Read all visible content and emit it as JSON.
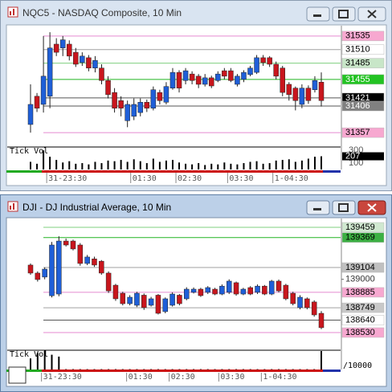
{
  "chart_data": [
    {
      "type": "candlestick",
      "title": "NQC5 - NASDAQ Composite, 10 Min",
      "volume_label": "Tick Vol",
      "categories": [
        null,
        null,
        null,
        "31-23:30",
        null,
        null,
        null,
        null,
        null,
        null,
        null,
        null,
        null,
        null,
        null,
        null,
        "01:30",
        null,
        null,
        null,
        null,
        null,
        null,
        "02:30",
        null,
        null,
        null,
        null,
        null,
        null,
        null,
        "03:30",
        null,
        null,
        null,
        null,
        null,
        null,
        "1-04:30",
        null,
        null,
        null,
        null,
        null,
        null,
        null
      ],
      "open": [
        31372,
        31424,
        31409,
        31424,
        31520,
        31513,
        31520,
        31505,
        31486,
        31495,
        31476,
        31476,
        31453,
        31431,
        31416,
        31379,
        31387,
        31394,
        31413,
        31402,
        31431,
        31413,
        31439,
        31468,
        31453,
        31465,
        31461,
        31446,
        31458,
        31453,
        31471,
        31471,
        31446,
        31455,
        31464,
        31468,
        31495,
        31495,
        31483,
        31476,
        31446,
        31439,
        31409,
        31439,
        31436,
        31450
      ],
      "high": [
        31446,
        31430,
        31535,
        31542,
        31531,
        31535,
        31527,
        31513,
        31505,
        31500,
        31498,
        31483,
        31461,
        31439,
        31424,
        31416,
        31420,
        31420,
        31418,
        31442,
        31436,
        31450,
        31476,
        31472,
        31476,
        31470,
        31465,
        31465,
        31462,
        31470,
        31476,
        31476,
        31465,
        31472,
        31480,
        31500,
        31500,
        31498,
        31488,
        31480,
        31450,
        31442,
        31446,
        31444,
        31461,
        31468
      ],
      "low": [
        31357,
        31395,
        31394,
        31402,
        31498,
        31498,
        31490,
        31478,
        31480,
        31470,
        31468,
        31446,
        31420,
        31394,
        31387,
        31367,
        31380,
        31387,
        31395,
        31398,
        31409,
        31409,
        31436,
        31431,
        31446,
        31446,
        31439,
        31442,
        31439,
        31450,
        31455,
        31450,
        31442,
        31450,
        31461,
        31465,
        31480,
        31478,
        31455,
        31424,
        31416,
        31398,
        31402,
        31410,
        31431,
        31405
      ],
      "close": [
        31409,
        31402,
        31461,
        31513,
        31505,
        31528,
        31498,
        31483,
        31498,
        31476,
        31490,
        31453,
        31427,
        31402,
        31402,
        31409,
        31409,
        31413,
        31402,
        31436,
        31416,
        31442,
        31468,
        31439,
        31471,
        31453,
        31446,
        31458,
        31443,
        31465,
        31461,
        31453,
        31461,
        31468,
        31476,
        31495,
        31486,
        31483,
        31461,
        31431,
        31427,
        31416,
        31439,
        31416,
        31453,
        31416
      ],
      "up_color": "#1f5fd8",
      "down_color": "#c8161d",
      "ylim": [
        31332,
        31554
      ],
      "levels": [
        {
          "value": 31535,
          "bg": "#f7a8d0",
          "fg": "#000000",
          "line": "#e58ad0"
        },
        {
          "value": 31510,
          "bg": "#ffffff",
          "fg": "#000000",
          "line": "#a0a0a0"
        },
        {
          "value": 31485,
          "bg": "#c8e6c8",
          "fg": "#000000",
          "line": "#7fcf7f"
        },
        {
          "value": 31455,
          "bg": "#22c322",
          "fg": "#ffffff",
          "line": "#22b422"
        },
        {
          "value": 31421,
          "bg": "#000000",
          "fg": "#ffffff",
          "line": "#555555"
        },
        {
          "value": 31406,
          "bg": "#808080",
          "fg": "#ffffff",
          "line": "#555555"
        },
        {
          "value": 31357,
          "bg": "#f7a8d0",
          "fg": "#000000",
          "line": "#e58ad0"
        }
      ],
      "volume": [
        120,
        90,
        300,
        200,
        150,
        110,
        130,
        90,
        100,
        80,
        120,
        100,
        140,
        130,
        150,
        120,
        160,
        130,
        100,
        170,
        120,
        140,
        150,
        110,
        90,
        80,
        100,
        70,
        90,
        80,
        110,
        90,
        80,
        100,
        120,
        130,
        90,
        100,
        140,
        150,
        160,
        120,
        140,
        170,
        200,
        207
      ],
      "volume_ylim": [
        0,
        340
      ],
      "volume_ticks": [
        100,
        300
      ],
      "volume_last": 207,
      "active": false
    },
    {
      "type": "candlestick",
      "title": "DJI - DJ Industrial Average, 10 Min",
      "volume_label": "Tick Vol",
      "volume_unit": "/10000",
      "categories": [
        null,
        null,
        "31-23:30",
        null,
        null,
        null,
        null,
        null,
        null,
        null,
        null,
        null,
        null,
        null,
        "01:30",
        null,
        null,
        null,
        null,
        null,
        "02:30",
        null,
        null,
        null,
        null,
        null,
        null,
        "03:30",
        null,
        null,
        null,
        null,
        null,
        "1-04:30",
        null,
        null,
        null,
        null,
        null,
        null,
        null,
        null
      ],
      "open": [
        139126,
        139055,
        139020,
        138855,
        138870,
        139338,
        139338,
        139303,
        139140,
        139180,
        139160,
        139055,
        138948,
        138877,
        138785,
        138771,
        138860,
        138771,
        138860,
        138715,
        138771,
        138860,
        138828,
        138885,
        138913,
        138885,
        138913,
        138870,
        138885,
        138970,
        138870,
        138927,
        138885,
        138940,
        138870,
        138984,
        138948,
        138877,
        138750,
        138828,
        138800,
        138700
      ],
      "high": [
        139140,
        139070,
        139105,
        139330,
        139380,
        139360,
        139350,
        139320,
        139215,
        139200,
        139170,
        139070,
        138960,
        138890,
        138860,
        138890,
        138875,
        138845,
        138870,
        138840,
        138885,
        138870,
        138930,
        138928,
        138925,
        138940,
        138925,
        138955,
        139000,
        138980,
        138925,
        138940,
        138955,
        138950,
        138995,
        138998,
        138960,
        138890,
        138860,
        138840,
        138815,
        138720
      ],
      "low": [
        139040,
        138980,
        139000,
        138840,
        138850,
        139290,
        139255,
        139120,
        139125,
        139110,
        139040,
        138880,
        138810,
        138770,
        138770,
        138755,
        138730,
        138760,
        138690,
        138700,
        138760,
        138770,
        138815,
        138875,
        138845,
        138870,
        138860,
        138860,
        138870,
        138855,
        138860,
        138860,
        138870,
        138860,
        138860,
        138885,
        138815,
        138770,
        138735,
        138735,
        138670,
        138560
      ],
      "close": [
        139055,
        138998,
        139090,
        139303,
        139338,
        139303,
        139268,
        139140,
        139197,
        139126,
        139055,
        138898,
        138828,
        138785,
        138842,
        138877,
        138750,
        138828,
        138700,
        138828,
        138870,
        138785,
        138913,
        138913,
        138856,
        138927,
        138870,
        138940,
        138984,
        138870,
        138913,
        138870,
        138940,
        138870,
        138984,
        138898,
        138828,
        138785,
        138842,
        138750,
        138686,
        138573
      ],
      "up_color": "#1f5fd8",
      "down_color": "#c8161d",
      "ylim": [
        138381,
        139537
      ],
      "yticks": [
        139000
      ],
      "levels": [
        {
          "value": 139459,
          "bg": "#d0e8d0",
          "fg": "#000000",
          "line": "#7fcf7f"
        },
        {
          "value": 139369,
          "bg": "#3cb043",
          "fg": "#000000",
          "line": "#22b422"
        },
        {
          "value": 139104,
          "bg": "#c0c0c0",
          "fg": "#000000",
          "line": "#a0a0a0"
        },
        {
          "value": 138885,
          "bg": "#f7a8d0",
          "fg": "#000000",
          "line": "#e58ad0"
        },
        {
          "value": 138749,
          "bg": "#c8c8c8",
          "fg": "#000000",
          "line": "#a0a0a0"
        },
        {
          "value": 138640,
          "bg": "#ffffff",
          "fg": "#000000",
          "line": "#555555"
        },
        {
          "value": 138530,
          "bg": "#f7a8d0",
          "fg": "#000000",
          "line": "#e58ad0"
        }
      ],
      "volume": [
        60,
        90,
        100,
        80,
        70,
        2,
        2,
        2,
        2,
        2,
        2,
        2,
        2,
        2,
        2,
        2,
        2,
        2,
        2,
        2,
        2,
        2,
        2,
        2,
        2,
        2,
        2,
        2,
        2,
        2,
        2,
        2,
        2,
        2,
        2,
        2,
        2,
        2,
        2,
        2,
        2,
        100
      ],
      "volume_ylim": [
        0,
        100
      ],
      "active": true
    }
  ]
}
